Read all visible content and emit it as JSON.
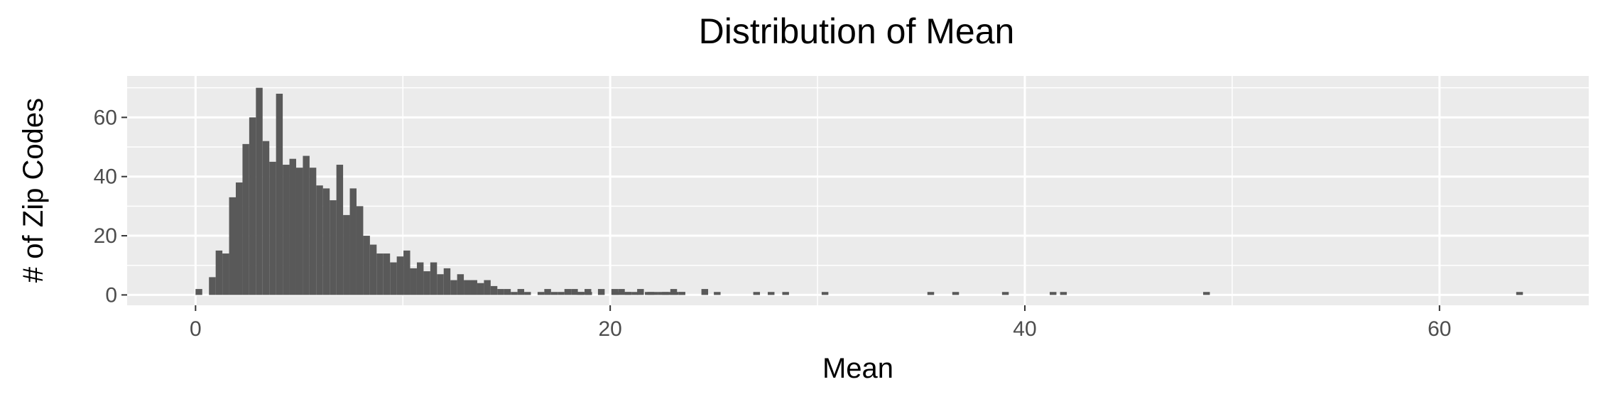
{
  "chart_data": {
    "type": "bar",
    "title": "Distribution of Mean",
    "xlabel": "Mean",
    "ylabel": "# of Zip Codes",
    "xlim": [
      -3.3,
      67.2
    ],
    "ylim": [
      -3.5,
      74
    ],
    "x_ticks": [
      0,
      20,
      40,
      60
    ],
    "y_ticks": [
      0,
      20,
      40,
      60
    ],
    "x_minor_ticks": [
      10,
      30,
      50
    ],
    "y_minor_ticks": [
      10,
      30,
      50,
      70
    ],
    "grid": true,
    "bin_width": 0.3235,
    "bin_start": 0,
    "bar_color": "#595959",
    "panel_color": "#ebebeb",
    "grid_color": "#ffffff",
    "values": [
      2,
      0,
      6,
      15,
      14,
      33,
      38,
      51,
      60,
      70,
      52,
      45,
      68,
      44,
      46,
      43,
      47,
      43,
      37,
      36,
      32,
      44,
      27,
      36,
      30,
      20,
      17,
      14,
      14,
      11,
      13,
      15,
      9,
      11,
      8,
      11,
      7,
      9,
      5,
      7,
      5,
      5,
      4,
      5,
      3,
      2,
      2,
      1,
      2,
      1,
      0,
      1,
      2,
      1,
      1,
      2,
      2,
      1,
      2,
      0,
      2,
      0,
      2,
      2,
      1,
      1,
      0,
      1,
      1,
      1,
      1,
      1,
      1,
      0,
      0,
      0,
      0,
      0,
      0,
      0,
      0,
      0,
      0,
      0,
      0,
      0,
      0,
      0,
      0,
      0,
      0,
      0,
      0,
      0,
      0,
      0,
      0,
      0,
      0,
      0,
      0,
      0,
      0,
      0,
      0,
      0,
      0,
      0,
      0,
      0,
      0,
      0,
      0,
      0,
      0,
      0,
      0,
      0,
      0,
      0,
      0,
      0,
      0,
      0,
      0,
      0,
      0,
      0,
      0,
      0,
      0,
      0,
      0,
      0,
      0,
      0,
      0,
      0,
      0,
      0,
      0,
      0,
      0,
      0,
      0,
      0,
      0,
      0,
      0,
      0,
      0,
      0,
      0,
      0,
      0,
      0,
      0,
      0,
      0,
      0,
      0,
      0,
      0,
      0,
      0,
      0,
      0,
      0,
      0,
      0,
      0,
      0,
      0,
      0,
      0,
      0,
      0,
      0,
      0,
      0,
      0,
      0,
      0,
      0,
      0,
      0,
      0,
      0,
      0,
      0,
      0,
      0,
      0,
      0
    ],
    "sparse_bins": [
      {
        "x": 18.4,
        "value": 1
      },
      {
        "x": 18.8,
        "value": 1
      },
      {
        "x": 20.1,
        "value": 1
      },
      {
        "x": 20.7,
        "value": 1
      },
      {
        "x": 21.3,
        "value": 2
      },
      {
        "x": 21.8,
        "value": 1
      },
      {
        "x": 22.5,
        "value": 1
      },
      {
        "x": 22.9,
        "value": 2
      },
      {
        "x": 23.3,
        "value": 1
      },
      {
        "x": 24.4,
        "value": 2
      },
      {
        "x": 25.0,
        "value": 1
      },
      {
        "x": 26.9,
        "value": 1
      },
      {
        "x": 27.6,
        "value": 1
      },
      {
        "x": 28.3,
        "value": 1
      },
      {
        "x": 30.2,
        "value": 1
      },
      {
        "x": 35.3,
        "value": 1
      },
      {
        "x": 36.5,
        "value": 1
      },
      {
        "x": 38.9,
        "value": 1
      },
      {
        "x": 41.2,
        "value": 1
      },
      {
        "x": 41.7,
        "value": 1
      },
      {
        "x": 48.6,
        "value": 1
      },
      {
        "x": 63.7,
        "value": 1
      }
    ]
  }
}
